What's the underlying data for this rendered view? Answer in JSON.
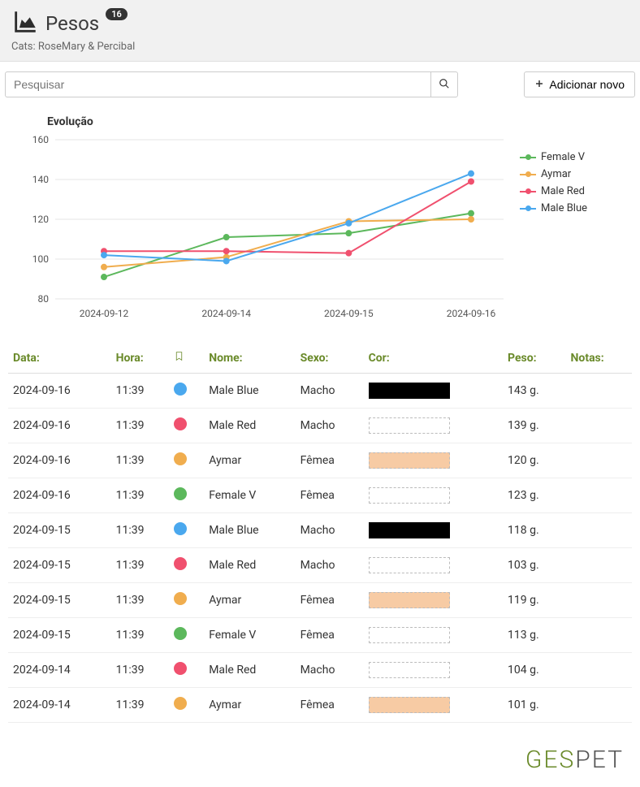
{
  "header": {
    "title": "Pesos",
    "badge": "16",
    "subtitle": "Cats: RoseMary & Percibal"
  },
  "toolbar": {
    "search_placeholder": "Pesquisar",
    "add_label": "Adicionar novo"
  },
  "chart": {
    "title": "Evolução",
    "type": "line",
    "categories": [
      "2024-09-12",
      "2024-09-14",
      "2024-09-15",
      "2024-09-16"
    ],
    "ylim": [
      80,
      160
    ],
    "ytick_step": 20,
    "yticks": [
      80,
      100,
      120,
      140,
      160
    ],
    "grid_color": "#e6e6e6",
    "axis_color": "#888888",
    "tick_font_size": 12,
    "title_font_size": 14,
    "series": [
      {
        "name": "Female V",
        "color": "#5cb85c",
        "values": [
          91,
          111,
          113,
          123
        ]
      },
      {
        "name": "Aymar",
        "color": "#f0ad4e",
        "values": [
          96,
          101,
          119,
          120
        ]
      },
      {
        "name": "Male Red",
        "color": "#f0506e",
        "values": [
          104,
          104,
          103,
          139
        ]
      },
      {
        "name": "Male Blue",
        "color": "#4aa8ee",
        "values": [
          102,
          99,
          118,
          143
        ]
      }
    ],
    "marker_radius": 4,
    "line_width": 2
  },
  "table": {
    "columns": {
      "data": "Data:",
      "hora": "Hora:",
      "bookmark": "",
      "nome": "Nome:",
      "sexo": "Sexo:",
      "cor": "Cor:",
      "peso": "Peso:",
      "notas": "Notas:"
    },
    "rows": [
      {
        "data": "2024-09-16",
        "hora": "11:39",
        "dot": "#4aa8ee",
        "nome": "Male Blue",
        "sexo": "Macho",
        "cor_fill": "#000000",
        "cor_border": "#000000",
        "peso": "143 g.",
        "notas": ""
      },
      {
        "data": "2024-09-16",
        "hora": "11:39",
        "dot": "#f0506e",
        "nome": "Male Red",
        "sexo": "Macho",
        "cor_fill": "transparent",
        "cor_border": "#bbbbbb",
        "peso": "139 g.",
        "notas": ""
      },
      {
        "data": "2024-09-16",
        "hora": "11:39",
        "dot": "#f0ad4e",
        "nome": "Aymar",
        "sexo": "Fêmea",
        "cor_fill": "#f7cba4",
        "cor_border": "#bbbbbb",
        "peso": "120 g.",
        "notas": ""
      },
      {
        "data": "2024-09-16",
        "hora": "11:39",
        "dot": "#5cb85c",
        "nome": "Female V",
        "sexo": "Fêmea",
        "cor_fill": "transparent",
        "cor_border": "#bbbbbb",
        "peso": "123 g.",
        "notas": ""
      },
      {
        "data": "2024-09-15",
        "hora": "11:39",
        "dot": "#4aa8ee",
        "nome": "Male Blue",
        "sexo": "Macho",
        "cor_fill": "#000000",
        "cor_border": "#000000",
        "peso": "118 g.",
        "notas": ""
      },
      {
        "data": "2024-09-15",
        "hora": "11:39",
        "dot": "#f0506e",
        "nome": "Male Red",
        "sexo": "Macho",
        "cor_fill": "transparent",
        "cor_border": "#bbbbbb",
        "peso": "103 g.",
        "notas": ""
      },
      {
        "data": "2024-09-15",
        "hora": "11:39",
        "dot": "#f0ad4e",
        "nome": "Aymar",
        "sexo": "Fêmea",
        "cor_fill": "#f7cba4",
        "cor_border": "#bbbbbb",
        "peso": "119 g.",
        "notas": ""
      },
      {
        "data": "2024-09-15",
        "hora": "11:39",
        "dot": "#5cb85c",
        "nome": "Female V",
        "sexo": "Fêmea",
        "cor_fill": "transparent",
        "cor_border": "#bbbbbb",
        "peso": "113 g.",
        "notas": ""
      },
      {
        "data": "2024-09-14",
        "hora": "11:39",
        "dot": "#f0506e",
        "nome": "Male Red",
        "sexo": "Macho",
        "cor_fill": "transparent",
        "cor_border": "#bbbbbb",
        "peso": "104 g.",
        "notas": ""
      },
      {
        "data": "2024-09-14",
        "hora": "11:39",
        "dot": "#f0ad4e",
        "nome": "Aymar",
        "sexo": "Fêmea",
        "cor_fill": "#f7cba4",
        "cor_border": "#bbbbbb",
        "peso": "101 g.",
        "notas": ""
      }
    ]
  },
  "footer": {
    "ges": "GES",
    "pet": "PET"
  }
}
